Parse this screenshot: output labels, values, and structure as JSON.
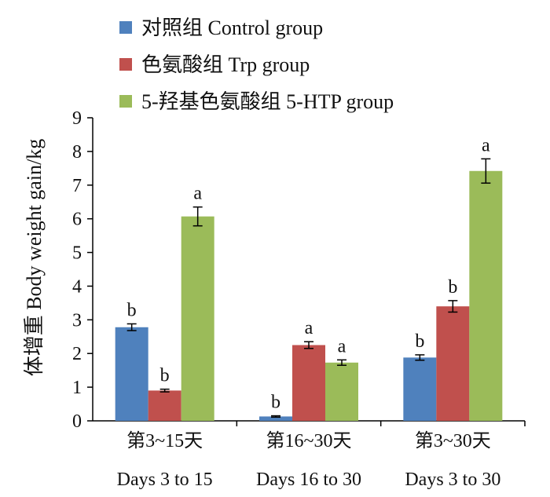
{
  "chart_data": {
    "type": "bar",
    "title": "",
    "ylabel": "体增重 Body weight gain/kg",
    "ylim": [
      0,
      9
    ],
    "yticks": [
      0,
      1,
      2,
      3,
      4,
      5,
      6,
      7,
      8,
      9
    ],
    "grid": false,
    "legend_position": "top",
    "categories": [
      {
        "cn": "第3~15天",
        "en": "Days 3 to 15"
      },
      {
        "cn": "第16~30天",
        "en": "Days 16 to 30"
      },
      {
        "cn": "第3~30天",
        "en": "Days 3 to 30"
      }
    ],
    "series": [
      {
        "name": "对照组 Control group",
        "color": "#4f81bd",
        "values": [
          2.78,
          0.13,
          1.88
        ],
        "errors": [
          0.1,
          0.02,
          0.08
        ],
        "labels": [
          "b",
          "b",
          "b"
        ]
      },
      {
        "name": "色氨酸组 Trp group",
        "color": "#c0504d",
        "values": [
          0.9,
          2.25,
          3.4
        ],
        "errors": [
          0.04,
          0.1,
          0.17
        ],
        "labels": [
          "b",
          "a",
          "b"
        ]
      },
      {
        "name": "5-羟基色氨酸组 5-HTP group",
        "color": "#9bbb59",
        "values": [
          6.07,
          1.73,
          7.42
        ],
        "errors": [
          0.28,
          0.08,
          0.36
        ],
        "labels": [
          "a",
          "a",
          "a"
        ]
      }
    ]
  }
}
